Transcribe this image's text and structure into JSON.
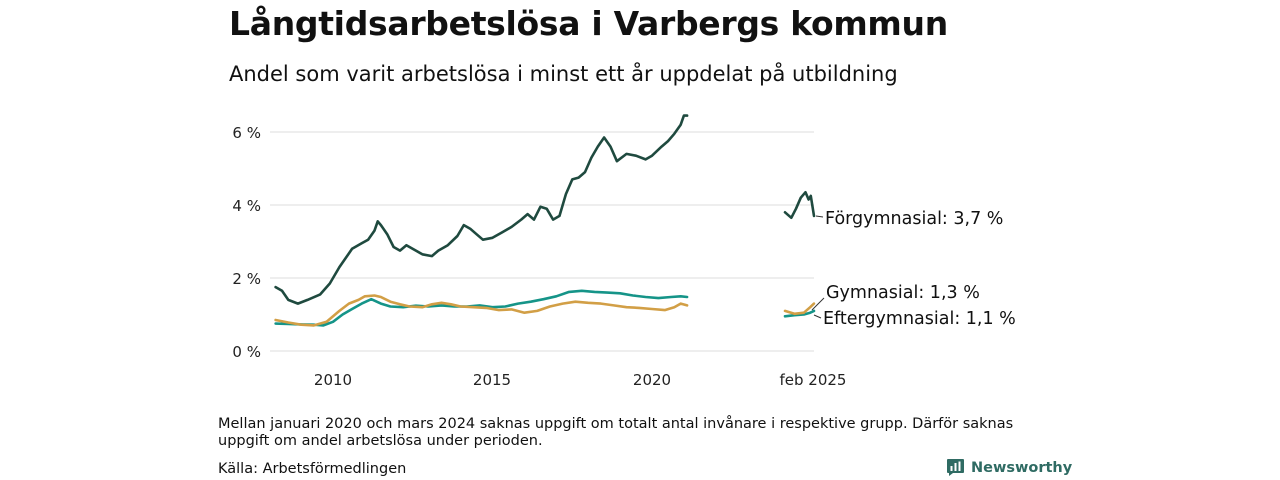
{
  "header": {
    "title": "Långtidsarbetslösa i Varbergs kommun",
    "subtitle": "Andel som varit arbetslösa i minst ett år uppdelat på utbildning"
  },
  "footer": {
    "note": "Mellan januari 2020 och mars 2024 saknas uppgift om totalt antal invånare i respektive grupp. Därför saknas uppgift om andel arbetslösa under perioden.",
    "source": "Källa: Arbetsförmedlingen",
    "brand": "Newsworthy"
  },
  "colors": {
    "forgymnasial": "#1f4a3f",
    "gymnasial": "#d29f46",
    "eftergymnasial": "#159488",
    "grid": "#dddddd",
    "brand": "#2f6b63"
  },
  "icons": {
    "brand": "bar-chart-speech-bubble-icon"
  },
  "chart_data": {
    "type": "line",
    "title": "Långtidsarbetslösa i Varbergs kommun",
    "subtitle": "Andel som varit arbetslösa i minst ett år uppdelat på utbildning",
    "x_axis": {
      "ticks": [
        "2010",
        "2015",
        "2020",
        "feb 2025"
      ],
      "range": [
        "2008-03",
        "2025-02"
      ],
      "break": "Efter 2020 hoppar axeln till perioden 2024–2025"
    },
    "y_axis": {
      "ticks": [
        "0 %",
        "2 %",
        "4 %",
        "6 %"
      ],
      "range": [
        0,
        6.5
      ],
      "unit": "%"
    },
    "grid": true,
    "legend": "direct-labels-right",
    "series": [
      {
        "name": "Förgymnasial",
        "end_label": "Förgymnasial: 3,7 %",
        "color_key": "forgymnasial",
        "segments": [
          [
            [
              2008.2,
              1.75
            ],
            [
              2008.4,
              1.65
            ],
            [
              2008.6,
              1.4
            ],
            [
              2008.9,
              1.3
            ],
            [
              2009.2,
              1.4
            ],
            [
              2009.6,
              1.55
            ],
            [
              2009.9,
              1.85
            ],
            [
              2010.2,
              2.3
            ],
            [
              2010.4,
              2.55
            ],
            [
              2010.6,
              2.8
            ],
            [
              2010.9,
              2.95
            ],
            [
              2011.1,
              3.05
            ],
            [
              2011.3,
              3.3
            ],
            [
              2011.4,
              3.55
            ],
            [
              2011.5,
              3.45
            ],
            [
              2011.7,
              3.2
            ],
            [
              2011.9,
              2.85
            ],
            [
              2012.1,
              2.75
            ],
            [
              2012.3,
              2.9
            ],
            [
              2012.6,
              2.75
            ],
            [
              2012.8,
              2.65
            ],
            [
              2013.1,
              2.6
            ],
            [
              2013.3,
              2.75
            ],
            [
              2013.6,
              2.9
            ],
            [
              2013.9,
              3.15
            ],
            [
              2014.1,
              3.45
            ],
            [
              2014.3,
              3.35
            ],
            [
              2014.5,
              3.2
            ],
            [
              2014.7,
              3.05
            ],
            [
              2015.0,
              3.1
            ],
            [
              2015.3,
              3.25
            ],
            [
              2015.6,
              3.4
            ],
            [
              2015.9,
              3.6
            ],
            [
              2016.1,
              3.75
            ],
            [
              2016.3,
              3.6
            ],
            [
              2016.5,
              3.95
            ],
            [
              2016.7,
              3.9
            ],
            [
              2016.9,
              3.6
            ],
            [
              2017.1,
              3.7
            ],
            [
              2017.3,
              4.3
            ],
            [
              2017.5,
              4.7
            ],
            [
              2017.7,
              4.75
            ],
            [
              2017.9,
              4.9
            ],
            [
              2018.1,
              5.3
            ],
            [
              2018.3,
              5.6
            ],
            [
              2018.5,
              5.85
            ],
            [
              2018.7,
              5.6
            ],
            [
              2018.9,
              5.2
            ],
            [
              2019.2,
              5.4
            ],
            [
              2019.5,
              5.35
            ],
            [
              2019.8,
              5.25
            ],
            [
              2020.0,
              5.35
            ],
            [
              2020.3,
              5.6
            ],
            [
              2020.5,
              5.75
            ],
            [
              2020.7,
              5.95
            ],
            [
              2020.9,
              6.2
            ],
            [
              2021.0,
              6.45
            ],
            [
              2021.1,
              6.45
            ]
          ],
          [
            [
              2024.2,
              3.8
            ],
            [
              2024.4,
              3.65
            ],
            [
              2024.55,
              3.9
            ],
            [
              2024.7,
              4.2
            ],
            [
              2024.85,
              4.35
            ],
            [
              2024.95,
              4.15
            ],
            [
              2025.02,
              4.25
            ],
            [
              2025.12,
              3.7
            ]
          ]
        ]
      },
      {
        "name": "Gymnasial",
        "end_label": "Gymnasial: 1,3 %",
        "color_key": "gymnasial",
        "segments": [
          [
            [
              2008.2,
              0.85
            ],
            [
              2008.6,
              0.78
            ],
            [
              2009.0,
              0.72
            ],
            [
              2009.4,
              0.7
            ],
            [
              2009.8,
              0.8
            ],
            [
              2010.2,
              1.1
            ],
            [
              2010.5,
              1.3
            ],
            [
              2010.8,
              1.4
            ],
            [
              2011.0,
              1.5
            ],
            [
              2011.3,
              1.52
            ],
            [
              2011.5,
              1.48
            ],
            [
              2011.8,
              1.35
            ],
            [
              2012.1,
              1.28
            ],
            [
              2012.4,
              1.22
            ],
            [
              2012.8,
              1.2
            ],
            [
              2013.1,
              1.28
            ],
            [
              2013.4,
              1.32
            ],
            [
              2013.7,
              1.28
            ],
            [
              2014.0,
              1.22
            ],
            [
              2014.4,
              1.2
            ],
            [
              2014.8,
              1.18
            ],
            [
              2015.2,
              1.12
            ],
            [
              2015.6,
              1.14
            ],
            [
              2016.0,
              1.05
            ],
            [
              2016.4,
              1.1
            ],
            [
              2016.8,
              1.22
            ],
            [
              2017.2,
              1.3
            ],
            [
              2017.6,
              1.35
            ],
            [
              2018.0,
              1.32
            ],
            [
              2018.4,
              1.3
            ],
            [
              2018.8,
              1.25
            ],
            [
              2019.2,
              1.2
            ],
            [
              2019.6,
              1.18
            ],
            [
              2020.0,
              1.15
            ],
            [
              2020.4,
              1.12
            ],
            [
              2020.7,
              1.2
            ],
            [
              2020.9,
              1.3
            ],
            [
              2021.1,
              1.25
            ]
          ],
          [
            [
              2024.2,
              1.1
            ],
            [
              2024.5,
              1.02
            ],
            [
              2024.8,
              1.05
            ],
            [
              2025.0,
              1.2
            ],
            [
              2025.12,
              1.3
            ]
          ]
        ]
      },
      {
        "name": "Eftergymnasial",
        "end_label": "Eftergymnasial: 1,1 %",
        "color_key": "eftergymnasial",
        "segments": [
          [
            [
              2008.2,
              0.75
            ],
            [
              2008.6,
              0.74
            ],
            [
              2009.0,
              0.73
            ],
            [
              2009.4,
              0.72
            ],
            [
              2009.7,
              0.7
            ],
            [
              2010.0,
              0.8
            ],
            [
              2010.3,
              1.0
            ],
            [
              2010.6,
              1.15
            ],
            [
              2010.9,
              1.3
            ],
            [
              2011.2,
              1.42
            ],
            [
              2011.5,
              1.3
            ],
            [
              2011.8,
              1.22
            ],
            [
              2012.2,
              1.2
            ],
            [
              2012.6,
              1.24
            ],
            [
              2013.0,
              1.22
            ],
            [
              2013.4,
              1.25
            ],
            [
              2013.8,
              1.22
            ],
            [
              2014.2,
              1.22
            ],
            [
              2014.6,
              1.25
            ],
            [
              2015.0,
              1.2
            ],
            [
              2015.4,
              1.22
            ],
            [
              2015.8,
              1.3
            ],
            [
              2016.2,
              1.35
            ],
            [
              2016.6,
              1.42
            ],
            [
              2017.0,
              1.5
            ],
            [
              2017.4,
              1.62
            ],
            [
              2017.8,
              1.65
            ],
            [
              2018.2,
              1.62
            ],
            [
              2018.6,
              1.6
            ],
            [
              2019.0,
              1.58
            ],
            [
              2019.4,
              1.52
            ],
            [
              2019.8,
              1.48
            ],
            [
              2020.2,
              1.45
            ],
            [
              2020.6,
              1.48
            ],
            [
              2020.9,
              1.5
            ],
            [
              2021.1,
              1.48
            ]
          ],
          [
            [
              2024.2,
              0.95
            ],
            [
              2024.5,
              0.98
            ],
            [
              2024.8,
              1.0
            ],
            [
              2025.0,
              1.05
            ],
            [
              2025.12,
              1.1
            ]
          ]
        ]
      }
    ]
  }
}
